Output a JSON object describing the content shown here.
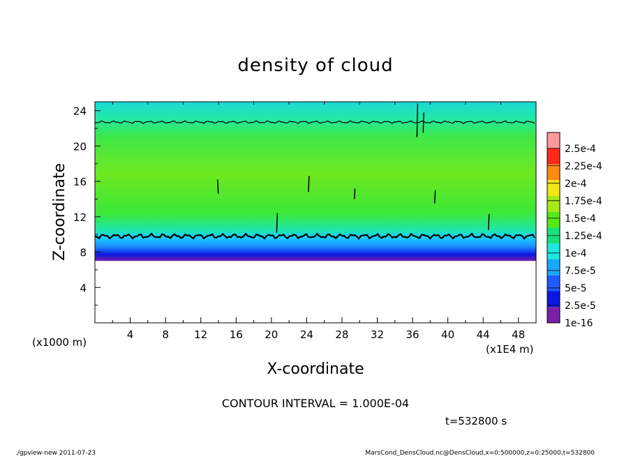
{
  "chart_data": {
    "type": "heatmap",
    "title": "density of cloud",
    "xlabel": "X-coordinate",
    "ylabel": "Z-coordinate",
    "x_unit_label": "(x1E4 m)",
    "y_unit_label": "(x1000 m)",
    "xlim": [
      0,
      50
    ],
    "ylim": [
      0,
      25
    ],
    "x_ticks": [
      "4",
      "8",
      "12",
      "16",
      "20",
      "24",
      "28",
      "32",
      "36",
      "40",
      "44",
      "48"
    ],
    "y_ticks": [
      "4",
      "8",
      "12",
      "16",
      "20",
      "24"
    ],
    "colorbar_labels": [
      "1e-16",
      "2.5e-5",
      "5e-5",
      "7.5e-5",
      "1e-4",
      "1.25e-4",
      "1.5e-4",
      "1.75e-4",
      "2e-4",
      "2.25e-4",
      "2.5e-4"
    ],
    "colorbar_colors": [
      "#7a1fa8",
      "#0a18e0",
      "#1f5cff",
      "#18a8ff",
      "#1ee6e0",
      "#19e07a",
      "#58e81a",
      "#a8e81a",
      "#f0e61a",
      "#ff8a10",
      "#ff2a1a",
      "#ff9a9a"
    ],
    "cloud_layer": {
      "z_bottom": 7.0,
      "z_top": 25.0
    },
    "contour_levels_z": [
      9.8,
      22.7
    ],
    "contour_interval": "CONTOUR INTERVAL = 1.000E-04"
  },
  "time_label": "t=532800 s",
  "footer": {
    "left": "./gpview-new   2011-07-23",
    "right": "MarsCond_DensCloud.nc@DensCloud,x=0:500000,z=0:25000,t=532800"
  }
}
